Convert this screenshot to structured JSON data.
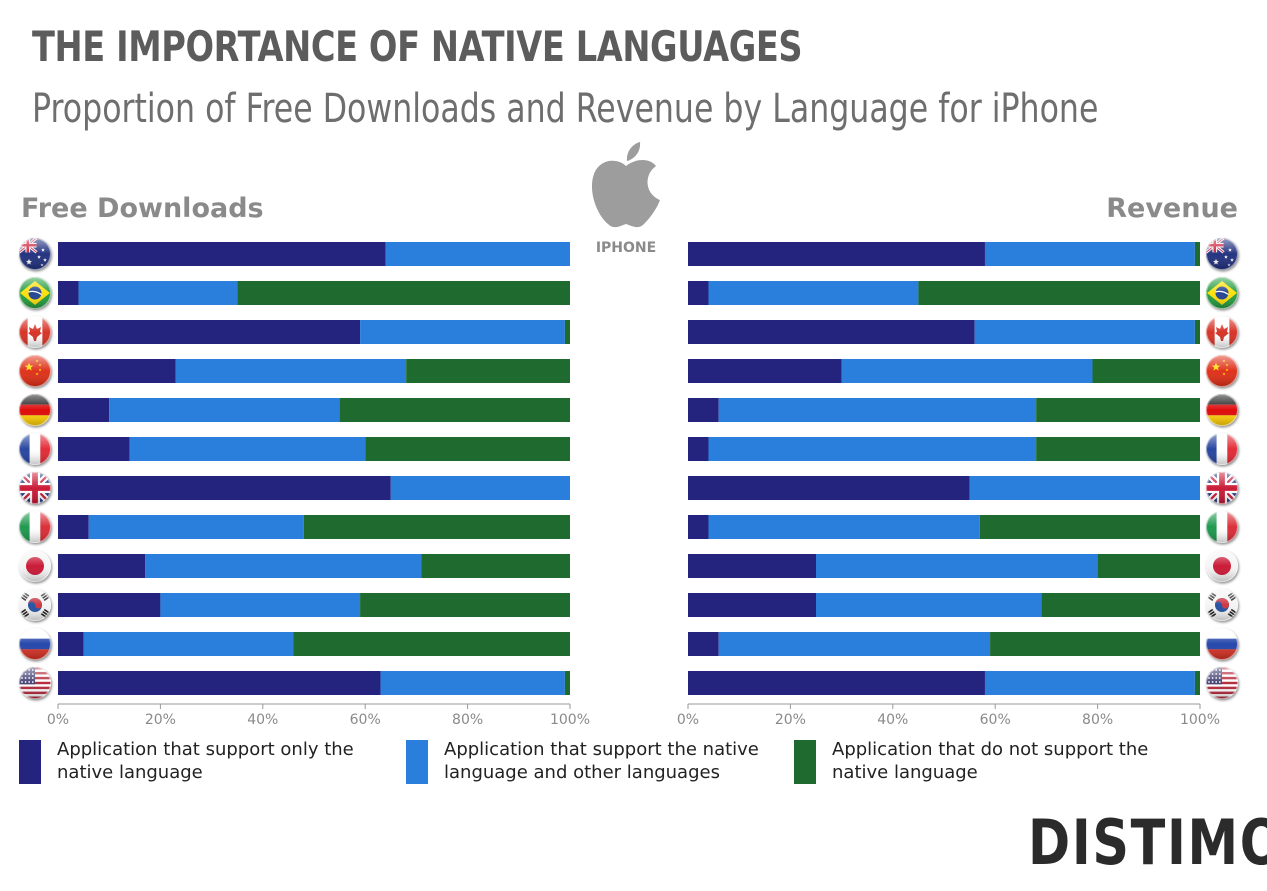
{
  "title": "THE IMPORTANCE OF NATIVE LANGUAGES",
  "subtitle": "Proportion of Free Downloads and Revenue by Language for iPhone",
  "platform_label": "IPHONE",
  "logo_text": "DISTIMO",
  "icons": {
    "platform": "apple-icon",
    "countries": [
      "australia-flag-icon",
      "brazil-flag-icon",
      "canada-flag-icon",
      "china-flag-icon",
      "germany-flag-icon",
      "france-flag-icon",
      "uk-flag-icon",
      "italy-flag-icon",
      "japan-flag-icon",
      "south-korea-flag-icon",
      "russia-flag-icon",
      "usa-flag-icon"
    ]
  },
  "colors": {
    "only_native": "#24237e",
    "native_and_other": "#2a7fdc",
    "no_native": "#1f6b2f"
  },
  "legend": [
    {
      "label": "Application that support only the native language"
    },
    {
      "label": "Application that support the native language and other languages"
    },
    {
      "label": "Application that do not support the native language"
    }
  ],
  "chart_data": [
    {
      "type": "bar",
      "orientation": "horizontal",
      "stacked": true,
      "title": "Free Downloads",
      "xlim": [
        0,
        100
      ],
      "x_ticks": [
        "0%",
        "20%",
        "40%",
        "60%",
        "80%",
        "100%"
      ],
      "series": [
        {
          "name": "Application that support only the native language",
          "values": [
            64,
            4,
            59,
            23,
            10,
            14,
            65,
            6,
            17,
            20,
            5,
            63
          ]
        },
        {
          "name": "Application that support the native language and other languages",
          "values": [
            36,
            31,
            40,
            45,
            45,
            46,
            35,
            42,
            54,
            39,
            41,
            36
          ]
        },
        {
          "name": "Application that do not support the native language",
          "values": [
            0,
            65,
            1,
            32,
            45,
            40,
            0,
            52,
            29,
            41,
            54,
            1
          ]
        }
      ]
    },
    {
      "type": "bar",
      "orientation": "horizontal",
      "stacked": true,
      "title": "Revenue",
      "xlim": [
        0,
        100
      ],
      "x_ticks": [
        "0%",
        "20%",
        "40%",
        "60%",
        "80%",
        "100%"
      ],
      "series": [
        {
          "name": "Application that support only the native language",
          "values": [
            58,
            4,
            56,
            30,
            6,
            4,
            55,
            4,
            25,
            25,
            6,
            58
          ]
        },
        {
          "name": "Application that support the native language and other languages",
          "values": [
            41,
            41,
            43,
            49,
            62,
            64,
            45,
            53,
            55,
            44,
            53,
            41
          ]
        },
        {
          "name": "Application that do not support the native language",
          "values": [
            1,
            55,
            1,
            21,
            32,
            32,
            0,
            43,
            20,
            31,
            41,
            1
          ]
        }
      ]
    }
  ]
}
